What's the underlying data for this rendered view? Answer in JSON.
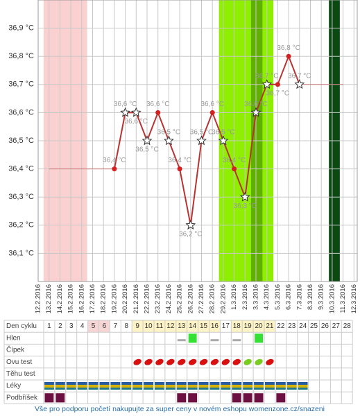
{
  "chart_data": {
    "type": "line",
    "categories": [
      "12.2.2016",
      "13.2.2016",
      "14.2.2016",
      "15.2.2016",
      "16.2.2016",
      "17.2.2016",
      "18.2.2016",
      "19.2.2016",
      "20.2.2016",
      "21.2.2016",
      "22.2.2016",
      "23.2.2016",
      "24.2.2016",
      "25.2.2016",
      "26.2.2016",
      "27.2.2016",
      "28.2.2016",
      "29.2.2016",
      "1.3.2016",
      "2.3.2016",
      "3.3.2016",
      "4.3.2016",
      "5.3.2016",
      "6.3.2016",
      "7.3.2016",
      "8.3.2016",
      "9.3.2016",
      "10.3.2016",
      "11.3.2016",
      "12.3.2016"
    ],
    "series": [
      {
        "color": "#b83232",
        "values": [
          null,
          null,
          null,
          null,
          null,
          null,
          null,
          36.4,
          36.6,
          36.6,
          36.5,
          36.6,
          36.5,
          36.4,
          36.2,
          36.5,
          36.6,
          36.5,
          36.4,
          36.3,
          36.6,
          36.7,
          36.7,
          36.8,
          36.7,
          null,
          null,
          null,
          null,
          null
        ],
        "value_labels": [
          null,
          null,
          null,
          null,
          null,
          null,
          null,
          "36,4 °C",
          "36,6 °C",
          "36,6 °C",
          "36,5 °C",
          "36,6 °C",
          "36,5 °C",
          "36,4 °C",
          "36,2 °C",
          "36,5 °C",
          "36,6 °C",
          "36,5 °C",
          "36,4 °C",
          "36,3 °C",
          "36,6 °C",
          "36,7 °C",
          "36,7 °C",
          "36,8 °C",
          "36,7 °C",
          null,
          null,
          null,
          null,
          null
        ],
        "markers": [
          null,
          null,
          null,
          null,
          null,
          null,
          null,
          "dot",
          "star",
          "star",
          "star",
          "dot",
          "star",
          "dot",
          "star",
          "star",
          "dot",
          "star",
          "dot",
          "star",
          "star",
          "star",
          "dot",
          "dot",
          "star",
          null,
          null,
          null,
          null,
          null
        ]
      }
    ],
    "ylim": [
      36.0,
      37.0
    ],
    "yticks": [
      {
        "value": 36.1,
        "label": "36,1 °C"
      },
      {
        "value": 36.2,
        "label": "36,2 °C"
      },
      {
        "value": 36.3,
        "label": "36,3 °C"
      },
      {
        "value": 36.4,
        "label": "36,4 °C"
      },
      {
        "value": 36.5,
        "label": "36,5 °C"
      },
      {
        "value": 36.6,
        "label": "36,6 °C"
      },
      {
        "value": 36.7,
        "label": "36,7 °C"
      },
      {
        "value": 36.8,
        "label": "36,8 °C"
      },
      {
        "value": 36.9,
        "label": "36,9 °C"
      }
    ],
    "grid": true
  },
  "table": {
    "row_labels": [
      "Den cyklu",
      "Hlen",
      "Čípek",
      "Ovu test",
      "Těhu test",
      "Léky",
      "Podbříšek"
    ],
    "days": [
      1,
      2,
      3,
      4,
      5,
      6,
      7,
      8,
      9,
      10,
      11,
      12,
      13,
      14,
      15,
      16,
      17,
      18,
      19,
      20,
      21,
      22,
      23,
      24,
      25,
      26,
      27,
      28
    ]
  },
  "footer": {
    "text": "Vše pro podporu početí nakupujte za super ceny v novém eshopu womenzone.cz/snazeni"
  }
}
